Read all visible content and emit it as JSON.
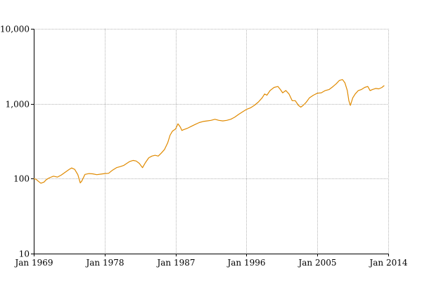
{
  "chart_data": {
    "type": "line",
    "title": "",
    "xlabel": "",
    "ylabel": "",
    "y_scale": "log",
    "ylim": [
      10,
      10000
    ],
    "xlim": [
      "Jan 1969",
      "Jan 2014"
    ],
    "grid": true,
    "legend": "none",
    "line_color": "#e08a00",
    "grid_color": "#b4b4b4",
    "x_ticks": [
      {
        "x": 1969.0,
        "label": "Jan 1969"
      },
      {
        "x": 1978.0,
        "label": "Jan 1978"
      },
      {
        "x": 1987.0,
        "label": "Jan 1987"
      },
      {
        "x": 1996.0,
        "label": "Jan 1996"
      },
      {
        "x": 2005.0,
        "label": "Jan 2005"
      },
      {
        "x": 2014.0,
        "label": "Jan 2014"
      }
    ],
    "y_ticks": [
      {
        "y": 10,
        "label": "10"
      },
      {
        "y": 100,
        "label": "100"
      },
      {
        "y": 1000,
        "label": "1,000"
      },
      {
        "y": 10000,
        "label": "10,000"
      }
    ],
    "series": [
      {
        "x": [
          1969.0,
          1969.3,
          1969.6,
          1969.9,
          1970.3,
          1970.6,
          1971.0,
          1971.5,
          1972.0,
          1972.5,
          1973.0,
          1973.5,
          1973.8,
          1974.2,
          1974.6,
          1974.9,
          1975.1,
          1975.5,
          1976.0,
          1976.5,
          1977.0,
          1977.5,
          1978.0,
          1978.5,
          1979.0,
          1979.5,
          1980.0,
          1980.4,
          1980.8,
          1981.2,
          1981.6,
          1982.0,
          1982.4,
          1982.8,
          1983.2,
          1983.6,
          1984.0,
          1984.4,
          1984.8,
          1985.2,
          1985.6,
          1986.0,
          1986.3,
          1986.6,
          1987.0,
          1987.3,
          1987.6,
          1987.8,
          1988.0,
          1988.5,
          1989.0,
          1989.5,
          1990.0,
          1990.5,
          1991.0,
          1991.5,
          1992.0,
          1992.5,
          1993.0,
          1993.5,
          1994.0,
          1994.5,
          1995.0,
          1995.5,
          1996.0,
          1996.5,
          1997.0,
          1997.5,
          1998.0,
          1998.3,
          1998.6,
          1999.0,
          1999.5,
          2000.0,
          2000.3,
          2000.6,
          2001.0,
          2001.4,
          2001.8,
          2002.2,
          2002.6,
          2002.9,
          2003.2,
          2003.6,
          2004.0,
          2004.5,
          2005.0,
          2005.5,
          2006.0,
          2006.5,
          2007.0,
          2007.4,
          2007.8,
          2008.2,
          2008.5,
          2008.8,
          2009.0,
          2009.2,
          2009.5,
          2009.8,
          2010.2,
          2010.6,
          2011.0,
          2011.4,
          2011.7,
          2012.0,
          2012.4,
          2012.8,
          2013.2,
          2013.5
        ],
        "y": [
          100,
          98,
          92,
          87,
          90,
          97,
          103,
          108,
          105,
          112,
          122,
          133,
          139,
          133,
          113,
          88,
          93,
          114,
          117,
          116,
          113,
          115,
          117,
          118,
          130,
          140,
          145,
          150,
          160,
          170,
          175,
          172,
          160,
          140,
          165,
          190,
          200,
          205,
          200,
          220,
          245,
          300,
          380,
          430,
          460,
          540,
          490,
          440,
          450,
          470,
          500,
          530,
          560,
          580,
          590,
          600,
          620,
          600,
          590,
          600,
          620,
          660,
          720,
          780,
          840,
          880,
          950,
          1050,
          1200,
          1350,
          1300,
          1500,
          1650,
          1700,
          1550,
          1400,
          1500,
          1350,
          1100,
          1100,
          950,
          900,
          950,
          1050,
          1200,
          1300,
          1380,
          1400,
          1500,
          1550,
          1700,
          1850,
          2050,
          2100,
          1900,
          1500,
          1100,
          950,
          1200,
          1350,
          1500,
          1550,
          1650,
          1700,
          1500,
          1550,
          1600,
          1580,
          1650,
          1750
        ]
      }
    ]
  }
}
